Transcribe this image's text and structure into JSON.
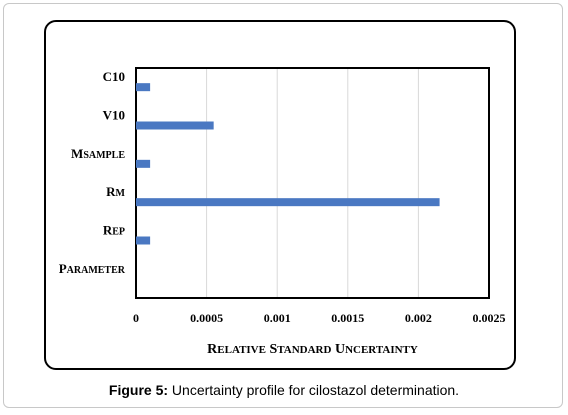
{
  "caption": {
    "label": "Figure 5:",
    "text": " Uncertainty profile for cilostazol determination."
  },
  "colors": {
    "bar": "#4a78c2",
    "grid": "#d9d9d9",
    "axis": "#000000"
  },
  "chart_data": {
    "type": "bar",
    "orientation": "horizontal",
    "categories": [
      "Parameter",
      "Rep",
      "Rm",
      "Msample",
      "V10",
      "C10"
    ],
    "category_labels": [
      [
        "P",
        "ARAMETER"
      ],
      [
        "R",
        "EP"
      ],
      [
        "R",
        "M"
      ],
      [
        "M",
        "SAMPLE"
      ],
      [
        "V10",
        ""
      ],
      [
        "C10",
        ""
      ]
    ],
    "values": [
      0,
      0.0001,
      0.00215,
      0.0001,
      0.00055,
      0.0001
    ],
    "xlim": [
      0,
      0.0025
    ],
    "xticks": [
      0,
      0.0005,
      0.001,
      0.0015,
      0.002,
      0.0025
    ],
    "xtick_labels": [
      "0",
      "0.0005",
      "0.001",
      "0.0015",
      "0.002",
      "0.0025"
    ],
    "xlabel_parts": [
      [
        "R",
        "ELATIVE"
      ],
      [
        "S",
        "TANDARD"
      ],
      [
        "U",
        "NCERTAINTY"
      ]
    ],
    "grid": "vertical",
    "legend": "none"
  }
}
